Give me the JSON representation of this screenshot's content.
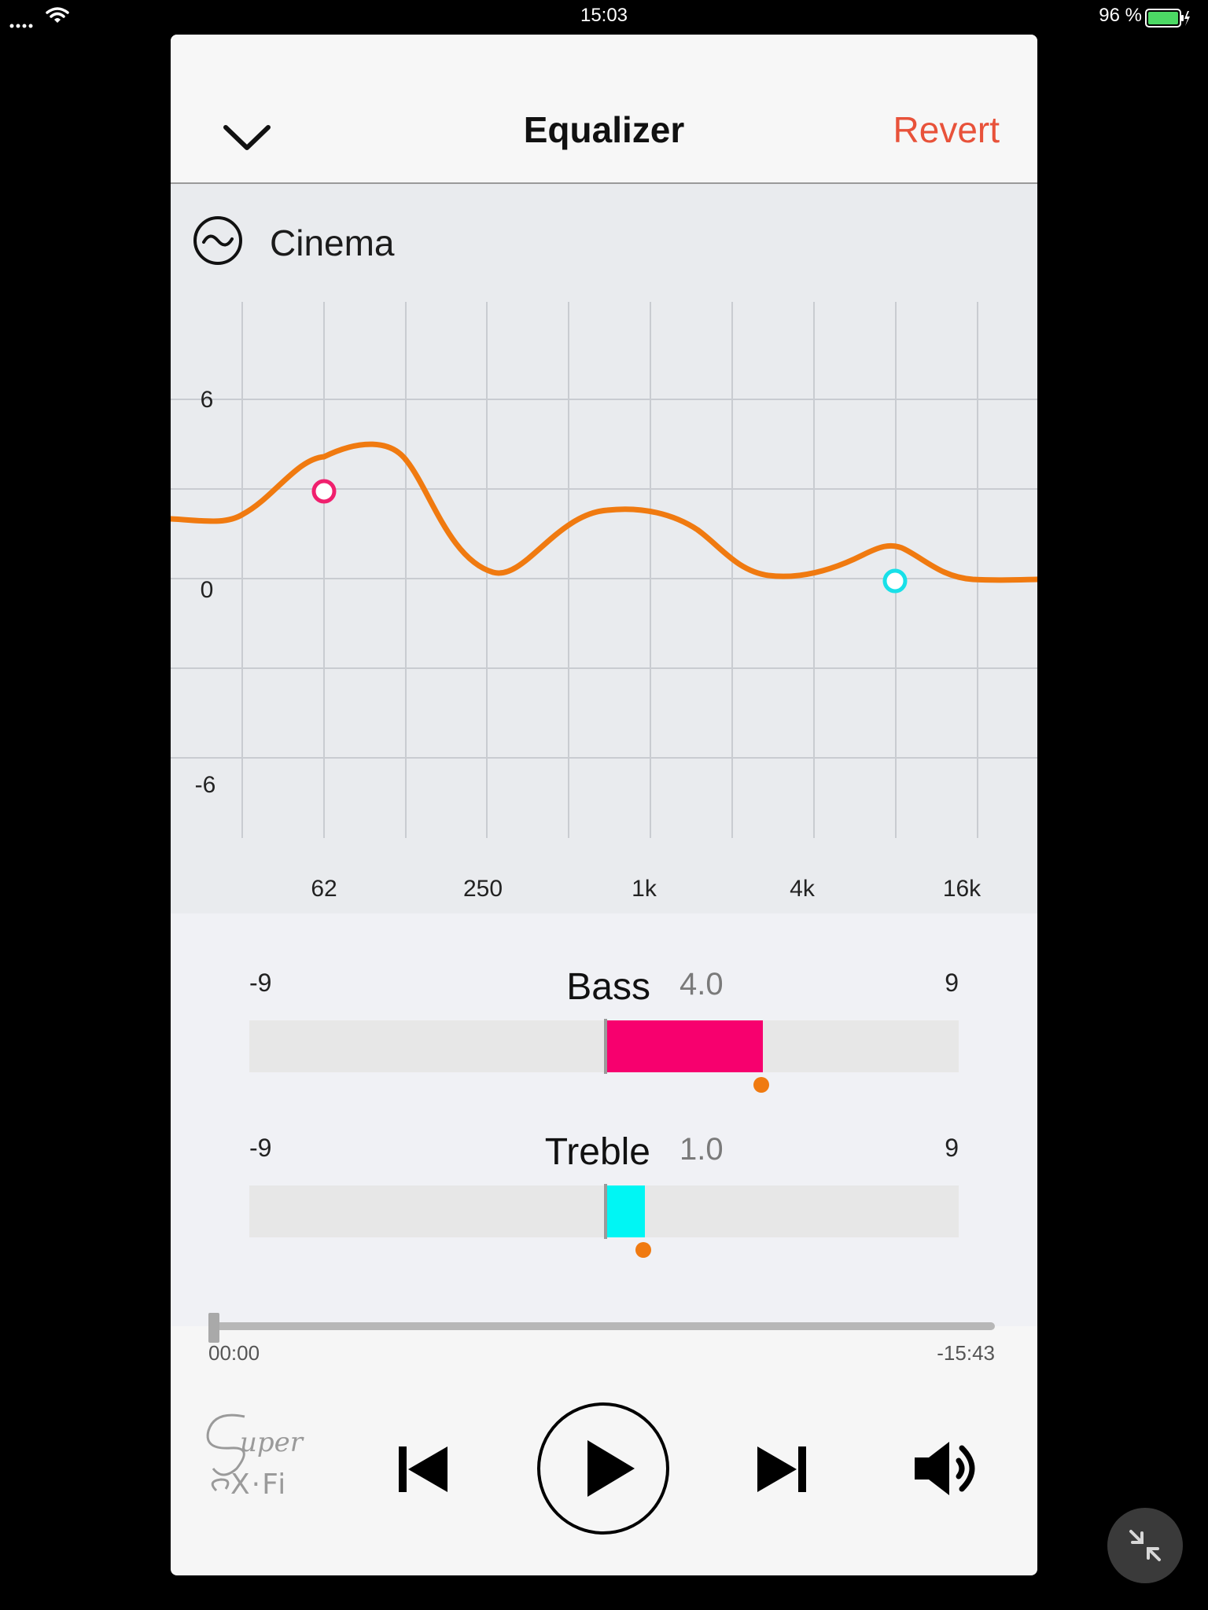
{
  "status_bar": {
    "time": "15:03",
    "battery_percent": "96 %"
  },
  "header": {
    "title": "Equalizer",
    "revert_label": "Revert"
  },
  "preset": {
    "name": "Cinema",
    "icon": "wave-circle-icon"
  },
  "eq_graph": {
    "y_labels": [
      "6",
      "0",
      "-6"
    ],
    "x_labels": [
      "62",
      "250",
      "1k",
      "4k",
      "16k"
    ],
    "curve_color": "#f07a10",
    "bass_handle_color": "#f0206e",
    "treble_handle_color": "#18e0e8"
  },
  "bass": {
    "label": "Bass",
    "value": "4.0",
    "min": "-9",
    "max": "9",
    "level": 4.0,
    "color": "#f7006e"
  },
  "treble": {
    "label": "Treble",
    "value": "1.0",
    "min": "-9",
    "max": "9",
    "level": 1.0,
    "color": "#00f6f4"
  },
  "playback": {
    "elapsed": "00:00",
    "remaining": "-15:43",
    "progress": 0
  },
  "brand": {
    "logo_text": "Super X-Fi"
  },
  "colors": {
    "accent": "#e8523a",
    "panel": "#f6f6f6",
    "eq_background": "#e9ebee"
  }
}
